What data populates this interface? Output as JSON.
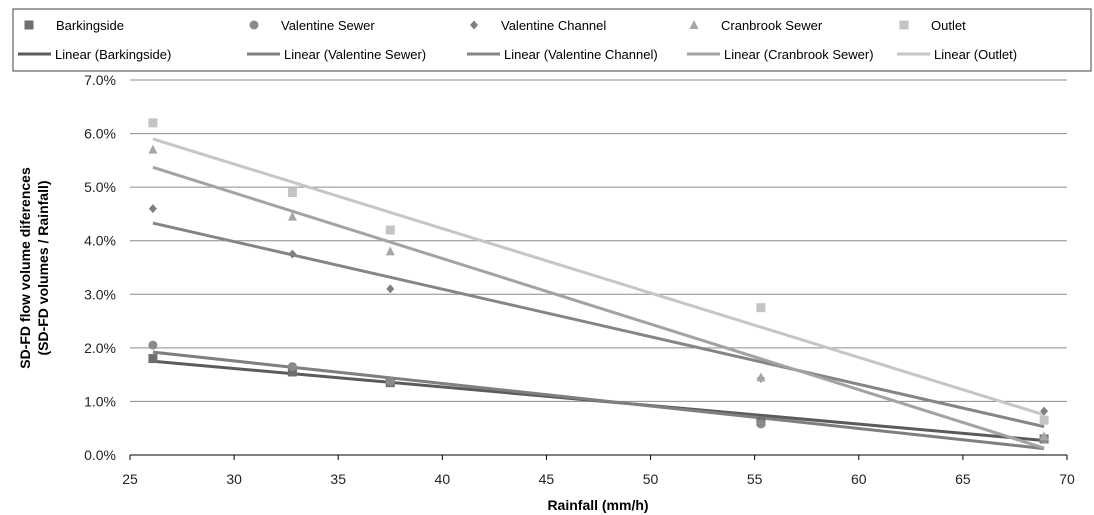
{
  "chart_data": {
    "type": "scatter",
    "xlabel": "Rainfall (mm/h)",
    "ylabel": "SD-FD flow volume diferences",
    "ylabel2": "(SD-FD volumes / Rainfall)",
    "xlim": [
      25,
      70
    ],
    "ylim": [
      0,
      0.07
    ],
    "x_ticks": [
      25,
      30,
      35,
      40,
      45,
      50,
      55,
      60,
      65,
      70
    ],
    "y_ticks": [
      0,
      0.01,
      0.02,
      0.03,
      0.04,
      0.05,
      0.06,
      0.07
    ],
    "y_tick_labels": [
      "0.0%",
      "1.0%",
      "2.0%",
      "3.0%",
      "4.0%",
      "5.0%",
      "6.0%",
      "7.0%"
    ],
    "grid": "horizontal",
    "legend_position": "top",
    "series": [
      {
        "name": "Barkingside",
        "marker": "square",
        "color": "#6e6e6e",
        "x": [
          26.1,
          32.8,
          37.5,
          55.3,
          68.9
        ],
        "y": [
          0.018,
          0.0155,
          0.0135,
          0.0062,
          0.003
        ],
        "trend_name": "Linear (Barkingside)",
        "trend_color": "#5b5b5b",
        "trend": [
          [
            26.1,
            0.0175
          ],
          [
            68.9,
            0.0027
          ]
        ]
      },
      {
        "name": "Valentine Sewer",
        "marker": "circle",
        "color": "#8a8a8a",
        "x": [
          26.1,
          32.8,
          37.5,
          55.3,
          68.9
        ],
        "y": [
          0.0205,
          0.0165,
          0.0137,
          0.0058,
          0.003
        ],
        "trend_name": "Linear (Valentine Sewer)",
        "trend_color": "#7f7f7f",
        "trend": [
          [
            26.1,
            0.0192
          ],
          [
            68.9,
            0.0012
          ]
        ]
      },
      {
        "name": "Valentine Channel",
        "marker": "diamond",
        "color": "#808080",
        "x": [
          26.1,
          32.8,
          37.5,
          55.3,
          68.9
        ],
        "y": [
          0.046,
          0.0375,
          0.031,
          0.0143,
          0.0082
        ],
        "trend_name": "Linear (Valentine Channel)",
        "trend_color": "#858585",
        "trend": [
          [
            26.1,
            0.0433
          ],
          [
            68.9,
            0.0053
          ]
        ]
      },
      {
        "name": "Cranbrook Sewer",
        "marker": "triangle",
        "color": "#a6a6a6",
        "x": [
          26.1,
          32.8,
          37.5,
          55.3,
          68.9
        ],
        "y": [
          0.057,
          0.0445,
          0.038,
          0.0145,
          0.0035
        ],
        "trend_name": "Linear (Cranbrook Sewer)",
        "trend_color": "#a3a3a3",
        "trend": [
          [
            26.1,
            0.0537
          ],
          [
            68.9,
            0.0013
          ]
        ]
      },
      {
        "name": "Outlet",
        "marker": "square",
        "color": "#c4c4c4",
        "x": [
          26.1,
          32.8,
          37.5,
          55.3,
          68.9
        ],
        "y": [
          0.062,
          0.049,
          0.042,
          0.0275,
          0.0065
        ],
        "trend_name": "Linear (Outlet)",
        "trend_color": "#c6c6c6",
        "trend": [
          [
            26.1,
            0.059
          ],
          [
            68.9,
            0.0075
          ]
        ]
      }
    ]
  }
}
